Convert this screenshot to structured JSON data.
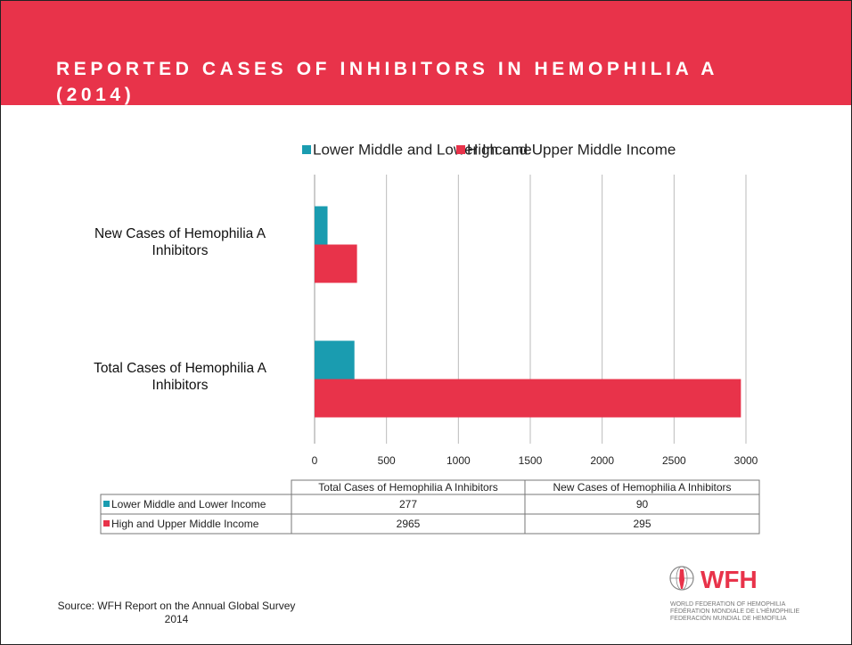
{
  "title": "REPORTED CASES OF INHIBITORS IN HEMOPHILIA A (2014)",
  "chart_data": {
    "type": "bar",
    "orientation": "horizontal",
    "categories": [
      "Total Cases of Hemophilia A Inhibitors",
      "New Cases of Hemophilia A Inhibitors"
    ],
    "series": [
      {
        "name": "Lower Middle and Lower Income",
        "color": "#1a9cb0",
        "values": [
          277,
          90
        ]
      },
      {
        "name": "High and Upper Middle Income",
        "color": "#e8334a",
        "values": [
          2965,
          295
        ]
      }
    ],
    "xlim": [
      0,
      3000
    ],
    "xticks": [
      0,
      500,
      1000,
      1500,
      2000,
      2500,
      3000
    ],
    "grid": true,
    "legend": "top"
  },
  "source": "Source: WFH Report on the Annual Global Survey 2014",
  "logo": {
    "name": "WFH",
    "lines": [
      "WORLD FEDERATION OF HEMOPHILIA",
      "FÉDÉRATION MONDIALE DE L'HÉMOPHILIE",
      "FEDERACIÓN MUNDIAL DE HEMOFILIA"
    ]
  }
}
